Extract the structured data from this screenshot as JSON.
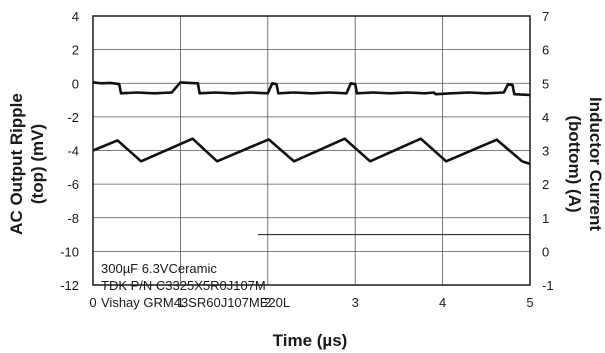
{
  "chart_data": {
    "type": "line",
    "xlabel": "Time (µs)",
    "ylabel_left": [
      "AC Output Ripple",
      "(top) (mV)"
    ],
    "ylabel_right": [
      "Inductor Current",
      "(bottom) (A)"
    ],
    "xlim": [
      0,
      5
    ],
    "ylim_left": [
      -12,
      4
    ],
    "ylim_right": [
      -1,
      7
    ],
    "x_ticks": [
      "0",
      "1",
      "2",
      "3",
      "4",
      "5"
    ],
    "y_left_ticks": [
      "4",
      "2",
      "0",
      "-2",
      "-4",
      "-6",
      "-8",
      "-10",
      "-12"
    ],
    "y_right_ticks": [
      "7",
      "6",
      "5",
      "4",
      "3",
      "2",
      "1",
      "0",
      "-1"
    ],
    "grid": true,
    "annotation_lines": [
      "300µF 6.3VCeramic",
      "TDK P/N C3325X5R0J107M",
      "Vishay GRM43SR60J107ME20L"
    ],
    "series": [
      {
        "axis": "left",
        "x": [
          0,
          0.1,
          0.2,
          0.3,
          0.32,
          0.5,
          0.7,
          0.9,
          1.0,
          1.1,
          1.2,
          1.22,
          1.4,
          1.6,
          1.8,
          2.0,
          2.05,
          2.1,
          2.12,
          2.3,
          2.5,
          2.7,
          2.9,
          2.95,
          3.0,
          3.02,
          3.2,
          3.4,
          3.6,
          3.8,
          3.9,
          3.92,
          4.1,
          4.3,
          4.5,
          4.7,
          4.75,
          4.8,
          4.82,
          5.0
        ],
        "y": [
          0.05,
          0.0,
          0.02,
          -0.05,
          -0.6,
          -0.55,
          -0.6,
          -0.55,
          0.05,
          0.02,
          0.0,
          -0.6,
          -0.55,
          -0.6,
          -0.55,
          -0.6,
          0.0,
          -0.05,
          -0.6,
          -0.55,
          -0.6,
          -0.55,
          -0.6,
          0.0,
          -0.05,
          -0.6,
          -0.55,
          -0.6,
          -0.55,
          -0.6,
          -0.55,
          -0.65,
          -0.6,
          -0.55,
          -0.6,
          -0.55,
          -0.05,
          -0.1,
          -0.65,
          -0.7
        ]
      },
      {
        "axis": "right",
        "x": [
          0,
          0.28,
          0.55,
          1.14,
          1.42,
          2.01,
          2.3,
          2.88,
          3.17,
          3.75,
          4.04,
          4.62,
          4.91,
          5.0
        ],
        "y": [
          3.0,
          3.3,
          2.68,
          3.35,
          2.68,
          3.33,
          2.68,
          3.35,
          2.68,
          3.35,
          2.68,
          3.32,
          2.68,
          2.6
        ]
      }
    ]
  }
}
